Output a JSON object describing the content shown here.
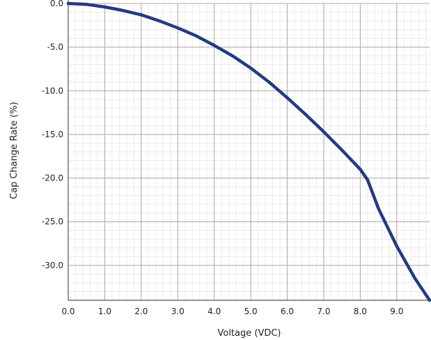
{
  "chart_data": {
    "type": "line",
    "title": "",
    "xlabel": "Voltage (VDC)",
    "ylabel": "Cap Change Rate (%)",
    "xlim": [
      0.0,
      9.9
    ],
    "ylim": [
      -34.0,
      0.0
    ],
    "grid": true,
    "minor_grid": true,
    "x_ticks": [
      0.0,
      1.0,
      2.0,
      3.0,
      4.0,
      5.0,
      6.0,
      7.0,
      8.0,
      9.0
    ],
    "x_tick_labels": [
      "0.0",
      "1.0",
      "2.0",
      "3.0",
      "4.0",
      "5.0",
      "6.0",
      "7.0",
      "8.0",
      "9.0"
    ],
    "y_ticks": [
      0.0,
      -5.0,
      -10.0,
      -15.0,
      -20.0,
      -25.0,
      -30.0
    ],
    "y_tick_labels": [
      "0.0",
      "-5.0",
      "-10.0",
      "-15.0",
      "-20.0",
      "-25.0",
      "-30.0"
    ],
    "series": [
      {
        "color": "#233a84",
        "x": [
          0.0,
          0.5,
          1.0,
          1.5,
          2.0,
          2.5,
          3.0,
          3.5,
          4.0,
          4.5,
          5.0,
          5.5,
          6.0,
          6.5,
          7.0,
          7.5,
          8.0,
          8.2,
          8.5,
          9.0,
          9.5,
          9.9
        ],
        "y": [
          0.0,
          -0.1,
          -0.4,
          -0.8,
          -1.3,
          -2.0,
          -2.8,
          -3.7,
          -4.8,
          -6.0,
          -7.4,
          -9.0,
          -10.8,
          -12.7,
          -14.7,
          -16.8,
          -19.0,
          -20.2,
          -23.5,
          -27.8,
          -31.5,
          -34.0
        ]
      }
    ]
  }
}
